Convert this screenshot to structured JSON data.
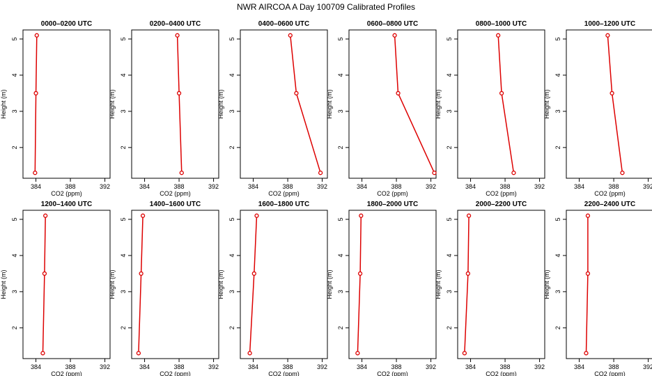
{
  "title": "NWR AIRCOA A  Day 100709  Calibrated Profiles",
  "chart_data": {
    "type": "line",
    "series_color": "#dd0000",
    "xlabel": "CO2 (ppm)",
    "ylabel": "Height (m)",
    "xlim": [
      382.5,
      392.6
    ],
    "ylim": [
      1.15,
      5.25
    ],
    "xticks": [
      384,
      388,
      392
    ],
    "yticks": [
      2,
      3,
      4,
      5
    ],
    "heights": [
      1.3,
      3.5,
      5.1
    ],
    "panels": [
      {
        "title": "0000–0200 UTC",
        "x": [
          383.9,
          384.0,
          384.1
        ]
      },
      {
        "title": "0200–0400 UTC",
        "x": [
          388.3,
          388.0,
          387.8
        ]
      },
      {
        "title": "0400–0600 UTC",
        "x": [
          391.8,
          389.0,
          388.3
        ]
      },
      {
        "title": "0600–0800 UTC",
        "x": [
          392.4,
          388.2,
          387.8
        ]
      },
      {
        "title": "0800–1000 UTC",
        "x": [
          389.0,
          387.6,
          387.2
        ]
      },
      {
        "title": "1000–1200 UTC",
        "x": [
          389.0,
          387.8,
          387.3
        ]
      },
      {
        "title": "1200–1400 UTC",
        "x": [
          384.8,
          385.0,
          385.1
        ]
      },
      {
        "title": "1400–1600 UTC",
        "x": [
          383.3,
          383.6,
          383.8
        ]
      },
      {
        "title": "1600–1800 UTC",
        "x": [
          383.6,
          384.1,
          384.4
        ]
      },
      {
        "title": "1800–2000 UTC",
        "x": [
          383.5,
          383.8,
          383.9
        ]
      },
      {
        "title": "2000–2200 UTC",
        "x": [
          383.3,
          383.7,
          383.8
        ]
      },
      {
        "title": "2200–2400 UTC",
        "x": [
          384.8,
          385.0,
          385.0
        ]
      }
    ]
  }
}
